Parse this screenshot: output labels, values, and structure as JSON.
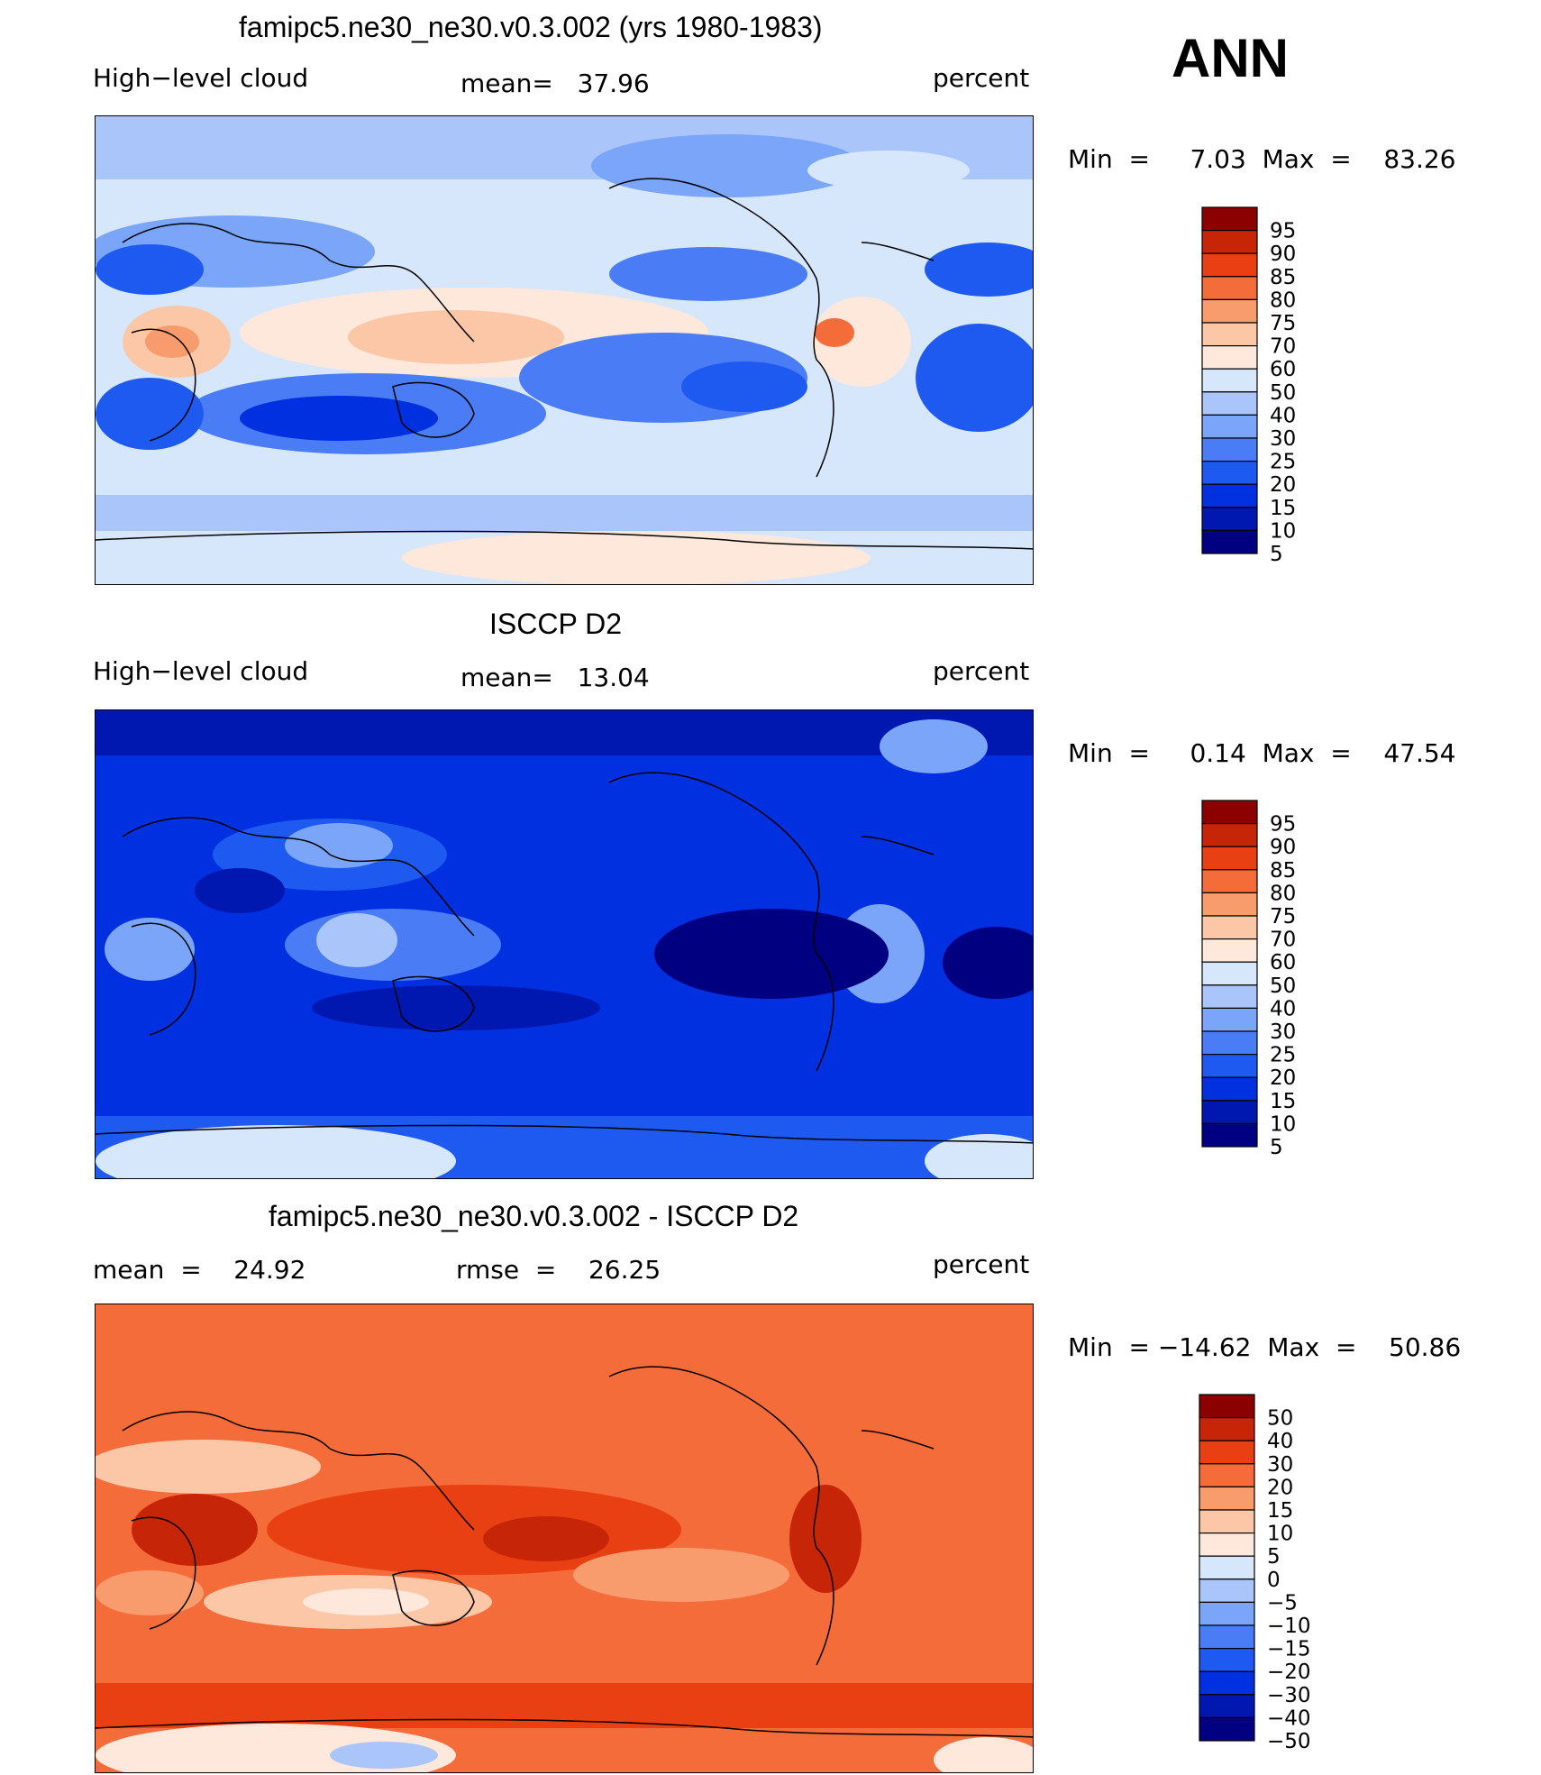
{
  "season": "ANN",
  "palettes": {
    "abs": [
      "#000080",
      "#0018b0",
      "#0030e0",
      "#1e5af0",
      "#4a7cf5",
      "#7aa5f8",
      "#a9c5fa",
      "#d6e6fb",
      "#fde8db",
      "#fbc7a7",
      "#f89b6d",
      "#f56c3b",
      "#e84013",
      "#c62508",
      "#8b0000"
    ],
    "diff": [
      "#000080",
      "#0018b0",
      "#0030e0",
      "#1e5af0",
      "#4a7cf5",
      "#7aa5f8",
      "#a9c5fa",
      "#d6e6fb",
      "#fde8db",
      "#fbc7a7",
      "#f89b6d",
      "#f56c3b",
      "#e84013",
      "#c62508",
      "#8b0000"
    ]
  },
  "panels": [
    {
      "title": "famipc5.ne30_ne30.v0.3.002 (yrs 1980-1983)",
      "left": "High−level cloud",
      "middle": "mean=   37.96",
      "right": "percent",
      "minmax": "Min  =     7.03  Max  =    83.26",
      "palette": "abs",
      "levels": [
        "95",
        "90",
        "85",
        "80",
        "75",
        "70",
        "60",
        "50",
        "40",
        "30",
        "25",
        "20",
        "15",
        "10",
        "5"
      ]
    },
    {
      "title": "ISCCP D2",
      "left": "High−level cloud",
      "middle": "mean=   13.04",
      "right": "percent",
      "minmax": "Min  =     0.14  Max  =    47.54",
      "palette": "abs",
      "levels": [
        "95",
        "90",
        "85",
        "80",
        "75",
        "70",
        "60",
        "50",
        "40",
        "30",
        "25",
        "20",
        "15",
        "10",
        "5"
      ]
    },
    {
      "title": "famipc5.ne30_ne30.v0.3.002 - ISCCP D2",
      "left": "mean  =    24.92",
      "middle": "rmse  =    26.25",
      "right": "percent",
      "minmax": "Min  = −14.62  Max  =    50.86",
      "palette": "diff",
      "levels": [
        "50",
        "40",
        "30",
        "20",
        "15",
        "10",
        "5",
        "0",
        "−5",
        "−10",
        "−15",
        "−20",
        "−30",
        "−40",
        "−50"
      ]
    }
  ],
  "chart_data": [
    {
      "type": "heatmap",
      "title": "famipc5.ne30_ne30.v0.3.002 (yrs 1980-1983)",
      "variable": "High-level cloud",
      "units": "percent",
      "mean": 37.96,
      "min": 7.03,
      "max": 83.26,
      "contour_levels": [
        5,
        10,
        15,
        20,
        25,
        30,
        40,
        50,
        60,
        70,
        75,
        80,
        85,
        90,
        95
      ],
      "projection": "cylindrical equidistant, centered on Pacific"
    },
    {
      "type": "heatmap",
      "title": "ISCCP D2",
      "variable": "High-level cloud",
      "units": "percent",
      "mean": 13.04,
      "min": 0.14,
      "max": 47.54,
      "contour_levels": [
        5,
        10,
        15,
        20,
        25,
        30,
        40,
        50,
        60,
        70,
        75,
        80,
        85,
        90,
        95
      ],
      "projection": "cylindrical equidistant, centered on Pacific"
    },
    {
      "type": "heatmap",
      "title": "famipc5.ne30_ne30.v0.3.002 - ISCCP D2",
      "units": "percent",
      "mean": 24.92,
      "rmse": 26.25,
      "min": -14.62,
      "max": 50.86,
      "contour_levels": [
        -50,
        -40,
        -30,
        -20,
        -15,
        -10,
        -5,
        0,
        5,
        10,
        15,
        20,
        30,
        40,
        50
      ],
      "projection": "cylindrical equidistant, centered on Pacific"
    }
  ]
}
